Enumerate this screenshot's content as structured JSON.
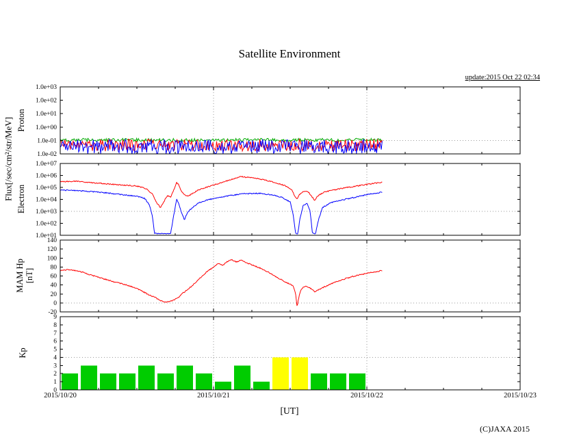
{
  "title": "Satellite Environment",
  "update_text": "update:2015 Oct 22 02:34",
  "copyright": "(C)JAXA 2015",
  "xlabel": "[UT]",
  "flux_axis_label": "Flux[/sec/cm²/str/MeV]",
  "x_axis": {
    "tick_labels": [
      "2015/10/20",
      "2015/10/21",
      "2015/10/22",
      "2015/10/23"
    ],
    "span_days": 3,
    "minor_tick_hours": 6
  },
  "colors": {
    "line_red": "#ff0000",
    "line_blue": "#0000ff",
    "line_green": "#00aa00",
    "bar_green": "#00cc00",
    "bar_yellow": "#ffff00",
    "grid_gray": "#9a9a9a"
  },
  "chart_data": [
    {
      "type": "line",
      "ylabel": "Proton",
      "yscale": "log",
      "ylim": [
        0.01,
        1000
      ],
      "ytick_values": [
        1000,
        100,
        10,
        1,
        0.1,
        0.01
      ],
      "ytick_labels": [
        "1.0e+03",
        "1.0e+02",
        "1.0e+01",
        "1.0e+00",
        "1.0e-01",
        "1.0e-02"
      ],
      "hgrid_value": 0.1,
      "data_end_day": 2.1,
      "noise_series": [
        {
          "name": "proton-green-channel",
          "color": "#00aa00",
          "baseline": 0.11,
          "spread_decades": 0.12
        },
        {
          "name": "proton-red-channel",
          "color": "#ff0000",
          "baseline": 0.045,
          "spread_decades": 0.45
        },
        {
          "name": "proton-blue-channel",
          "color": "#0000ff",
          "baseline": 0.035,
          "spread_decades": 0.55
        }
      ]
    },
    {
      "type": "line",
      "ylabel": "Electron",
      "yscale": "log",
      "ylim": [
        10,
        10000000
      ],
      "ytick_values": [
        10000000,
        1000000,
        100000,
        10000,
        1000,
        100,
        10
      ],
      "ytick_labels": [
        "1.0e+07",
        "1.0e+06",
        "1.0e+05",
        "1.0e+04",
        "1.0e+03",
        "1.0e+02",
        "1.0e+01"
      ],
      "hgrid_value": 1000,
      "series": [
        {
          "name": "electron-low-energy-blue",
          "color": "#0000ff",
          "jitter": 0.045,
          "points": [
            [
              0,
              60000
            ],
            [
              0.1,
              55000
            ],
            [
              0.2,
              45000
            ],
            [
              0.3,
              35000
            ],
            [
              0.4,
              25000
            ],
            [
              0.5,
              18000
            ],
            [
              0.55,
              12000
            ],
            [
              0.58,
              4000
            ],
            [
              0.6,
              500
            ],
            [
              0.615,
              14
            ],
            [
              0.72,
              14
            ],
            [
              0.73,
              80
            ],
            [
              0.745,
              1000
            ],
            [
              0.76,
              10000
            ],
            [
              0.775,
              4000
            ],
            [
              0.79,
              800
            ],
            [
              0.81,
              200
            ],
            [
              0.83,
              800
            ],
            [
              0.86,
              2000
            ],
            [
              0.9,
              5000
            ],
            [
              0.95,
              8000
            ],
            [
              1.0,
              12000
            ],
            [
              1.1,
              20000
            ],
            [
              1.2,
              30000
            ],
            [
              1.3,
              32000
            ],
            [
              1.4,
              22000
            ],
            [
              1.45,
              14000
            ],
            [
              1.5,
              6000
            ],
            [
              1.52,
              500
            ],
            [
              1.535,
              14
            ],
            [
              1.55,
              14
            ],
            [
              1.565,
              300
            ],
            [
              1.585,
              3000
            ],
            [
              1.61,
              5000
            ],
            [
              1.63,
              1000
            ],
            [
              1.645,
              14
            ],
            [
              1.665,
              14
            ],
            [
              1.685,
              200
            ],
            [
              1.71,
              2000
            ],
            [
              1.76,
              5000
            ],
            [
              1.82,
              8000
            ],
            [
              1.9,
              13000
            ],
            [
              2.0,
              25000
            ],
            [
              2.1,
              40000
            ]
          ]
        },
        {
          "name": "electron-high-energy-red",
          "color": "#ff0000",
          "jitter": 0.045,
          "points": [
            [
              0,
              300000
            ],
            [
              0.1,
              330000
            ],
            [
              0.2,
              250000
            ],
            [
              0.3,
              200000
            ],
            [
              0.4,
              160000
            ],
            [
              0.5,
              130000
            ],
            [
              0.56,
              80000
            ],
            [
              0.6,
              30000
            ],
            [
              0.63,
              5000
            ],
            [
              0.655,
              2000
            ],
            [
              0.68,
              8000
            ],
            [
              0.7,
              20000
            ],
            [
              0.72,
              15000
            ],
            [
              0.745,
              80000
            ],
            [
              0.76,
              250000
            ],
            [
              0.775,
              150000
            ],
            [
              0.79,
              50000
            ],
            [
              0.81,
              25000
            ],
            [
              0.835,
              18000
            ],
            [
              0.86,
              30000
            ],
            [
              0.9,
              60000
            ],
            [
              0.95,
              100000
            ],
            [
              1.0,
              160000
            ],
            [
              1.05,
              250000
            ],
            [
              1.1,
              400000
            ],
            [
              1.15,
              600000
            ],
            [
              1.18,
              800000
            ],
            [
              1.22,
              700000
            ],
            [
              1.27,
              600000
            ],
            [
              1.32,
              450000
            ],
            [
              1.38,
              300000
            ],
            [
              1.43,
              200000
            ],
            [
              1.48,
              120000
            ],
            [
              1.51,
              60000
            ],
            [
              1.53,
              20000
            ],
            [
              1.545,
              10000
            ],
            [
              1.56,
              25000
            ],
            [
              1.59,
              50000
            ],
            [
              1.62,
              40000
            ],
            [
              1.645,
              15000
            ],
            [
              1.66,
              8000
            ],
            [
              1.68,
              20000
            ],
            [
              1.72,
              40000
            ],
            [
              1.78,
              60000
            ],
            [
              1.85,
              90000
            ],
            [
              1.95,
              140000
            ],
            [
              2.05,
              220000
            ],
            [
              2.1,
              280000
            ]
          ]
        }
      ]
    },
    {
      "type": "line",
      "ylabel": "MAM Hp",
      "ylabel2": "[nT]",
      "yscale": "linear",
      "ylim": [
        -20,
        140
      ],
      "ytick_values": [
        140,
        120,
        100,
        80,
        60,
        40,
        20,
        0,
        -20
      ],
      "ytick_labels": [
        "140",
        "120",
        "100",
        "80",
        "60",
        "40",
        "20",
        "0",
        "-20"
      ],
      "hgrid_value": 0,
      "series": [
        {
          "name": "mam-hp-red",
          "color": "#ff0000",
          "jitter": 1.2,
          "points": [
            [
              0,
              72
            ],
            [
              0.05,
              74
            ],
            [
              0.1,
              72
            ],
            [
              0.15,
              68
            ],
            [
              0.2,
              62
            ],
            [
              0.25,
              57
            ],
            [
              0.3,
              52
            ],
            [
              0.35,
              47
            ],
            [
              0.4,
              43
            ],
            [
              0.45,
              38
            ],
            [
              0.5,
              32
            ],
            [
              0.54,
              25
            ],
            [
              0.58,
              18
            ],
            [
              0.62,
              12
            ],
            [
              0.65,
              6
            ],
            [
              0.68,
              2
            ],
            [
              0.71,
              3
            ],
            [
              0.74,
              6
            ],
            [
              0.77,
              12
            ],
            [
              0.8,
              22
            ],
            [
              0.84,
              32
            ],
            [
              0.88,
              45
            ],
            [
              0.92,
              58
            ],
            [
              0.96,
              70
            ],
            [
              1.0,
              80
            ],
            [
              1.03,
              88
            ],
            [
              1.06,
              84
            ],
            [
              1.09,
              92
            ],
            [
              1.12,
              96
            ],
            [
              1.15,
              91
            ],
            [
              1.18,
              95
            ],
            [
              1.21,
              90
            ],
            [
              1.25,
              85
            ],
            [
              1.3,
              78
            ],
            [
              1.35,
              70
            ],
            [
              1.4,
              60
            ],
            [
              1.45,
              50
            ],
            [
              1.49,
              43
            ],
            [
              1.52,
              38
            ],
            [
              1.535,
              20
            ],
            [
              1.545,
              -8
            ],
            [
              1.555,
              10
            ],
            [
              1.57,
              30
            ],
            [
              1.6,
              38
            ],
            [
              1.63,
              33
            ],
            [
              1.66,
              25
            ],
            [
              1.7,
              32
            ],
            [
              1.75,
              40
            ],
            [
              1.8,
              47
            ],
            [
              1.86,
              54
            ],
            [
              1.92,
              60
            ],
            [
              2.0,
              66
            ],
            [
              2.1,
              72
            ]
          ]
        }
      ]
    },
    {
      "type": "bar",
      "ylabel": "Kp",
      "yscale": "linear",
      "ylim": [
        0,
        9
      ],
      "ytick_values": [
        9,
        8,
        7,
        6,
        5,
        4,
        3,
        2,
        1,
        0
      ],
      "ytick_labels": [
        "9",
        "8",
        "7",
        "6",
        "5",
        "4",
        "3",
        "2",
        "1",
        "0"
      ],
      "hgrid_value": 4,
      "bin_hours": 3,
      "alert_threshold": 4,
      "bar_colors": {
        "normal": "#00cc00",
        "alert": "#ffff00"
      },
      "values": [
        2,
        3,
        2,
        2,
        3,
        2,
        3,
        2,
        1,
        3,
        1,
        4,
        4,
        2,
        2,
        2
      ]
    }
  ]
}
